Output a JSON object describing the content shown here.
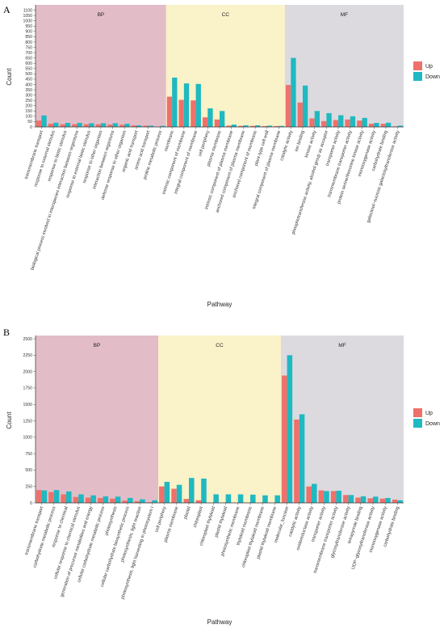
{
  "colors": {
    "up": "#F0706A",
    "down": "#1FB9C1",
    "BP": "#E2BDC8",
    "CC": "#FAF2C8",
    "MF": "#DCDADF"
  },
  "chart_data": [
    {
      "panel_label": "A",
      "type": "bar",
      "xlabel": "Pathway",
      "ylabel": "Count",
      "ylim": [
        0,
        1150
      ],
      "yticks": [
        0,
        50,
        100,
        150,
        200,
        250,
        300,
        350,
        400,
        450,
        500,
        550,
        600,
        650,
        700,
        750,
        800,
        850,
        900,
        950,
        1000,
        1050,
        1100
      ],
      "legend": [
        "Up",
        "Down"
      ],
      "legend_position": "right",
      "groups": [
        {
          "name": "BP",
          "start": 0,
          "end": 11
        },
        {
          "name": "CC",
          "start": 11,
          "end": 21
        },
        {
          "name": "MF",
          "start": 21,
          "end": 31
        }
      ],
      "categories": [
        "transmembrane transport",
        "response to external stimulus",
        "response to biotic stimulus",
        "biological process involved in interspecies interaction between organisms",
        "response to external biotic stimulus",
        "response to other organism",
        "interaction between organisms",
        "defense response to other organism",
        "organic acid transport",
        "amino acid transport",
        "proline metabolic process",
        "membrane",
        "intrinsic component of membrane",
        "integral component of membrane",
        "cell periphery",
        "plasma membrane",
        "intrinsic component of plasma membrane",
        "anchored component of plasma membrane",
        "anchored component of membrane",
        "plant-type cell wall",
        "integral component of plasma membrane",
        "catalytic activity",
        "ion binding",
        "kinase activity",
        "phosphotransferase activity, alcohol group as acceptor",
        "transporter activity",
        "transmembrane transporter activity",
        "protein serine/threonine kinase activity",
        "monooxygenase activity",
        "carbohydrate binding",
        "galactinol−sucrose galactosyltransferase activity"
      ],
      "series": [
        {
          "name": "Up",
          "values": [
            60,
            30,
            25,
            25,
            25,
            25,
            22,
            20,
            15,
            12,
            3,
            285,
            255,
            250,
            90,
            70,
            12,
            10,
            10,
            8,
            8,
            395,
            230,
            80,
            55,
            65,
            70,
            60,
            30,
            30,
            5
          ]
        },
        {
          "name": "Down",
          "values": [
            108,
            40,
            38,
            38,
            35,
            35,
            35,
            30,
            15,
            12,
            10,
            465,
            410,
            405,
            175,
            150,
            22,
            15,
            15,
            12,
            10,
            650,
            390,
            150,
            130,
            110,
            100,
            85,
            38,
            40,
            12
          ]
        }
      ]
    },
    {
      "panel_label": "B",
      "type": "bar",
      "xlabel": "Pathway",
      "ylabel": "Count",
      "ylim": [
        0,
        2550
      ],
      "yticks": [
        0,
        250,
        500,
        750,
        1000,
        1250,
        1500,
        1750,
        2000,
        2250,
        2500
      ],
      "legend": [
        "Up",
        "Down"
      ],
      "legend_position": "right",
      "groups": [
        {
          "name": "BP",
          "start": 0,
          "end": 10
        },
        {
          "name": "CC",
          "start": 10,
          "end": 20
        },
        {
          "name": "MF",
          "start": 20,
          "end": 30
        }
      ],
      "categories": [
        "transmembrane transport",
        "carbohydrate metabolic process",
        "response to chemical",
        "cellular response to chemical stimulus",
        "generation of precursor metabolites and energy",
        "cellular carbohydrate metabolic process",
        "photosynthesis",
        "cellular carbohydrate biosynthetic process",
        "photosynthesis, light reaction",
        "photosynthesis, light harvesting in photosystem I",
        "cell periphery",
        "plasma membrane",
        "plastid",
        "chloroplast",
        "chloroplast thylakoid",
        "plastid thylakoid",
        "photosynthetic membrane",
        "thylakoid membrane",
        "chloroplast thylakoid membrane",
        "plastid thylakoid membrane",
        "molecular_function",
        "catalytic activity",
        "oxidoreductase activity",
        "transporter activity",
        "transmembrane transporter activity",
        "glycosyltransferase activity",
        "tetrapyrrole binding",
        "UDP−glycosyltransferase activity",
        "monooxygenase activity",
        "carbohydrate binding"
      ],
      "series": [
        {
          "name": "Up",
          "values": [
            195,
            165,
            130,
            90,
            80,
            75,
            65,
            35,
            25,
            10,
            250,
            215,
            60,
            40,
            3,
            3,
            3,
            3,
            3,
            3,
            1940,
            1270,
            250,
            190,
            180,
            120,
            80,
            70,
            65,
            50
          ]
        },
        {
          "name": "Down",
          "values": [
            190,
            195,
            175,
            130,
            115,
            100,
            95,
            75,
            55,
            40,
            320,
            275,
            380,
            370,
            130,
            130,
            130,
            125,
            115,
            115,
            2250,
            1350,
            290,
            180,
            185,
            120,
            100,
            95,
            75,
            40
          ]
        }
      ]
    }
  ]
}
